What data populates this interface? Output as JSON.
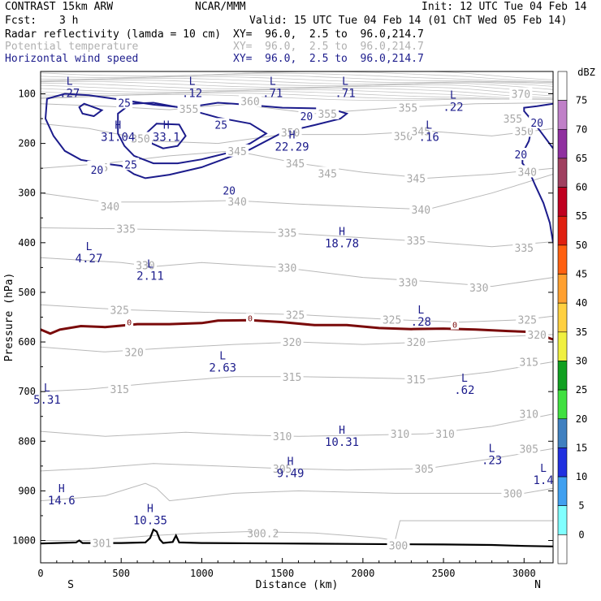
{
  "header": {
    "title_left": "CONTRAST 15km ARW",
    "title_center": "NCAR/MMM",
    "init": "Init: 12 UTC Tue 04 Feb 14",
    "fcst_label": "Fcst:",
    "fcst_value": "3 h",
    "valid": "Valid: 15 UTC Tue 04 Feb 14 (01 ChT Wed 05 Feb 14)"
  },
  "fields": [
    {
      "name": "Radar reflectivity (lamda = 10 cm)",
      "xy": "XY=  96.0,  2.5 to  96.0,214.7",
      "color": "#000000"
    },
    {
      "name": "Potential temperature",
      "xy": "XY=  96.0,  2.5 to  96.0,214.7",
      "color": "#b0b0b0"
    },
    {
      "name": "Horizontal wind speed",
      "xy": "XY=  96.0,  2.5 to  96.0,214.7",
      "color": "#1c1c8c"
    }
  ],
  "chart_data": {
    "type": "cross-section",
    "xlabel": "Distance (km)",
    "ylabel": "Pressure (hPa)",
    "xlim": [
      0,
      3180
    ],
    "ylim": [
      1045,
      55
    ],
    "x_ticks": [
      0,
      500,
      1000,
      1500,
      2000,
      2500,
      3000
    ],
    "y_ticks": [
      100,
      200,
      300,
      400,
      500,
      600,
      700,
      800,
      900,
      1000
    ],
    "x_end_labels": {
      "left": "S",
      "right": "N"
    },
    "colorbar": {
      "unit": "dBZ",
      "levels": [
        75,
        70,
        65,
        60,
        55,
        50,
        45,
        40,
        35,
        30,
        25,
        20,
        15,
        10,
        5,
        0
      ],
      "colors": [
        "#ffffff",
        "#c080c8",
        "#9030a0",
        "#a04060",
        "#c00020",
        "#e02010",
        "#ff6010",
        "#ffa030",
        "#ffd040",
        "#f0f040",
        "#10a020",
        "#40e040",
        "#4080c0",
        "#2030e0",
        "#40a0f0",
        "#80ffff",
        "#ffffff"
      ]
    },
    "theta_labels": [
      {
        "v": "370",
        "x": 2980,
        "p": 100
      },
      {
        "v": "360",
        "x": 1300,
        "p": 115
      },
      {
        "v": "355",
        "x": 920,
        "p": 130
      },
      {
        "v": "355",
        "x": 2280,
        "p": 128
      },
      {
        "v": "355",
        "x": 1780,
        "p": 140
      },
      {
        "v": "355",
        "x": 2930,
        "p": 150
      },
      {
        "v": "350",
        "x": 620,
        "p": 190
      },
      {
        "v": "350",
        "x": 1550,
        "p": 178
      },
      {
        "v": "350",
        "x": 2250,
        "p": 185
      },
      {
        "v": "345",
        "x": 2360,
        "p": 175
      },
      {
        "v": "350",
        "x": 3000,
        "p": 175
      },
      {
        "v": "345",
        "x": 1220,
        "p": 215
      },
      {
        "v": "345",
        "x": 360,
        "p": 248
      },
      {
        "v": "345",
        "x": 1580,
        "p": 240
      },
      {
        "v": "345",
        "x": 1780,
        "p": 260
      },
      {
        "v": "345",
        "x": 2330,
        "p": 270
      },
      {
        "v": "340",
        "x": 3020,
        "p": 257
      },
      {
        "v": "340",
        "x": 430,
        "p": 327
      },
      {
        "v": "340",
        "x": 1220,
        "p": 317
      },
      {
        "v": "340",
        "x": 2360,
        "p": 333
      },
      {
        "v": "335",
        "x": 530,
        "p": 372
      },
      {
        "v": "335",
        "x": 1530,
        "p": 380
      },
      {
        "v": "335",
        "x": 2330,
        "p": 395
      },
      {
        "v": "335",
        "x": 3000,
        "p": 410
      },
      {
        "v": "330",
        "x": 650,
        "p": 445
      },
      {
        "v": "330",
        "x": 1530,
        "p": 450
      },
      {
        "v": "330",
        "x": 2280,
        "p": 480
      },
      {
        "v": "330",
        "x": 2720,
        "p": 490
      },
      {
        "v": "325",
        "x": 490,
        "p": 535
      },
      {
        "v": "325",
        "x": 1580,
        "p": 545
      },
      {
        "v": "325",
        "x": 2180,
        "p": 555
      },
      {
        "v": "325",
        "x": 3020,
        "p": 555
      },
      {
        "v": "320",
        "x": 1560,
        "p": 600
      },
      {
        "v": "320",
        "x": 2330,
        "p": 600
      },
      {
        "v": "320",
        "x": 3080,
        "p": 585
      },
      {
        "v": "320",
        "x": 580,
        "p": 620
      },
      {
        "v": "315",
        "x": 1560,
        "p": 670
      },
      {
        "v": "315",
        "x": 2330,
        "p": 675
      },
      {
        "v": "315",
        "x": 3030,
        "p": 640
      },
      {
        "v": "315",
        "x": 490,
        "p": 695
      },
      {
        "v": "310",
        "x": 1500,
        "p": 790
      },
      {
        "v": "310",
        "x": 2230,
        "p": 785
      },
      {
        "v": "310",
        "x": 2510,
        "p": 785
      },
      {
        "v": "310",
        "x": 3030,
        "p": 745
      },
      {
        "v": "305",
        "x": 1500,
        "p": 855
      },
      {
        "v": "305",
        "x": 2380,
        "p": 855
      },
      {
        "v": "305",
        "x": 3030,
        "p": 815
      },
      {
        "v": "300",
        "x": 2930,
        "p": 905
      },
      {
        "v": "301",
        "x": 380,
        "p": 1005
      },
      {
        "v": "300.2",
        "x": 1380,
        "p": 985
      },
      {
        "v": "300",
        "x": 2220,
        "p": 1010
      }
    ],
    "wind_labels": [
      {
        "v": "25",
        "x": 520,
        "p": 118
      },
      {
        "v": "25",
        "x": 1120,
        "p": 162
      },
      {
        "v": "25",
        "x": 560,
        "p": 242
      },
      {
        "v": "20",
        "x": 1650,
        "p": 145
      },
      {
        "v": "20",
        "x": 350,
        "p": 253
      },
      {
        "v": "20",
        "x": 1170,
        "p": 295
      },
      {
        "v": "20",
        "x": 2980,
        "p": 222
      },
      {
        "v": "20",
        "x": 3080,
        "p": 158
      }
    ],
    "highs_lows": [
      {
        "t": "L",
        "v": ".27",
        "x": 180,
        "p": 82
      },
      {
        "t": "L",
        "v": ".12",
        "x": 940,
        "p": 82
      },
      {
        "t": "L",
        "v": ".71",
        "x": 1440,
        "p": 82
      },
      {
        "t": "L",
        "v": ".71",
        "x": 1890,
        "p": 82
      },
      {
        "t": "L",
        "v": ".22",
        "x": 2560,
        "p": 110
      },
      {
        "t": "H",
        "v": "31.04",
        "x": 480,
        "p": 170
      },
      {
        "t": "H",
        "v": "33.1",
        "x": 780,
        "p": 170
      },
      {
        "t": "H",
        "v": "22.29",
        "x": 1560,
        "p": 190
      },
      {
        "t": "L",
        "v": ".16",
        "x": 2410,
        "p": 170
      },
      {
        "t": "H",
        "v": "18.78",
        "x": 1870,
        "p": 385
      },
      {
        "t": "L",
        "v": "4.27",
        "x": 300,
        "p": 415
      },
      {
        "t": "L",
        "v": "2.11",
        "x": 680,
        "p": 450
      },
      {
        "t": "L",
        "v": ".28",
        "x": 2360,
        "p": 543
      },
      {
        "t": "L",
        "v": "2.63",
        "x": 1130,
        "p": 635
      },
      {
        "t": "L",
        "v": "5.31",
        "x": 40,
        "p": 700
      },
      {
        "t": "L",
        "v": ".62",
        "x": 2630,
        "p": 680
      },
      {
        "t": "H",
        "v": "10.31",
        "x": 1870,
        "p": 785
      },
      {
        "t": "L",
        "v": ".23",
        "x": 2800,
        "p": 822
      },
      {
        "t": "L",
        "v": "1.4",
        "x": 3120,
        "p": 862
      },
      {
        "t": "H",
        "v": "9.49",
        "x": 1550,
        "p": 848
      },
      {
        "t": "H",
        "v": "14.6",
        "x": 130,
        "p": 903
      },
      {
        "t": "H",
        "v": "10.35",
        "x": 680,
        "p": 943
      }
    ],
    "zero_labels": [
      {
        "v": "0",
        "x": 550,
        "p": 560
      },
      {
        "v": "0",
        "x": 1300,
        "p": 552
      },
      {
        "v": "0",
        "x": 2570,
        "p": 565
      }
    ],
    "ground_series": [
      [
        0,
        1006
      ],
      [
        100,
        1005
      ],
      [
        220,
        1004
      ],
      [
        240,
        1000
      ],
      [
        260,
        1005
      ],
      [
        500,
        1005
      ],
      [
        650,
        1004
      ],
      [
        680,
        995
      ],
      [
        700,
        978
      ],
      [
        720,
        982
      ],
      [
        740,
        998
      ],
      [
        760,
        1005
      ],
      [
        820,
        1003
      ],
      [
        840,
        990
      ],
      [
        860,
        1004
      ],
      [
        1000,
        1005
      ],
      [
        1500,
        1006
      ],
      [
        2000,
        1007
      ],
      [
        2500,
        1008
      ],
      [
        2800,
        1009
      ],
      [
        3000,
        1011
      ],
      [
        3180,
        1012
      ]
    ],
    "freezing_series": [
      [
        0,
        575
      ],
      [
        60,
        583
      ],
      [
        120,
        575
      ],
      [
        250,
        568
      ],
      [
        400,
        570
      ],
      [
        600,
        564
      ],
      [
        800,
        564
      ],
      [
        1000,
        562
      ],
      [
        1100,
        557
      ],
      [
        1300,
        556
      ],
      [
        1500,
        560
      ],
      [
        1700,
        566
      ],
      [
        1900,
        566
      ],
      [
        2100,
        572
      ],
      [
        2300,
        574
      ],
      [
        2500,
        573
      ],
      [
        2700,
        575
      ],
      [
        2900,
        578
      ],
      [
        3050,
        580
      ],
      [
        3180,
        595
      ]
    ],
    "wind20_main": [
      [
        40,
        110
      ],
      [
        150,
        100
      ],
      [
        300,
        103
      ],
      [
        500,
        112
      ],
      [
        700,
        122
      ],
      [
        900,
        128
      ],
      [
        1100,
        118
      ],
      [
        1200,
        120
      ],
      [
        1500,
        128
      ],
      [
        1800,
        130
      ],
      [
        1900,
        140
      ],
      [
        1860,
        150
      ],
      [
        1700,
        163
      ],
      [
        1500,
        178
      ],
      [
        1300,
        212
      ],
      [
        1150,
        230
      ],
      [
        1000,
        248
      ],
      [
        800,
        263
      ],
      [
        650,
        270
      ],
      [
        580,
        262
      ],
      [
        500,
        245
      ],
      [
        380,
        240
      ],
      [
        250,
        233
      ],
      [
        150,
        215
      ],
      [
        80,
        185
      ],
      [
        30,
        150
      ],
      [
        40,
        110
      ]
    ],
    "wind25_outer": [
      [
        560,
        120
      ],
      [
        700,
        118
      ],
      [
        900,
        130
      ],
      [
        1100,
        148
      ],
      [
        1300,
        160
      ],
      [
        1400,
        180
      ],
      [
        1300,
        200
      ],
      [
        1150,
        220
      ],
      [
        1000,
        232
      ],
      [
        850,
        240
      ],
      [
        700,
        240
      ],
      [
        580,
        225
      ],
      [
        520,
        205
      ],
      [
        480,
        180
      ],
      [
        480,
        140
      ],
      [
        560,
        120
      ]
    ],
    "wind25_inner": [
      [
        270,
        120
      ],
      [
        380,
        133
      ],
      [
        330,
        145
      ],
      [
        260,
        140
      ],
      [
        240,
        127
      ],
      [
        270,
        120
      ]
    ],
    "wind25_mid": [
      [
        720,
        160
      ],
      [
        860,
        162
      ],
      [
        900,
        185
      ],
      [
        850,
        205
      ],
      [
        760,
        210
      ],
      [
        690,
        200
      ],
      [
        660,
        178
      ],
      [
        720,
        160
      ]
    ],
    "wind20_right": [
      [
        3180,
        210
      ],
      [
        3100,
        175
      ],
      [
        3040,
        150
      ],
      [
        3000,
        135
      ],
      [
        3000,
        128
      ],
      [
        3080,
        125
      ],
      [
        3180,
        120
      ]
    ],
    "wind20_right_b": [
      [
        3180,
        400
      ],
      [
        3160,
        360
      ],
      [
        3120,
        320
      ],
      [
        3070,
        285
      ],
      [
        3030,
        255
      ],
      [
        2990,
        240
      ],
      [
        2990,
        220
      ],
      [
        3030,
        195
      ],
      [
        3040,
        180
      ]
    ]
  }
}
